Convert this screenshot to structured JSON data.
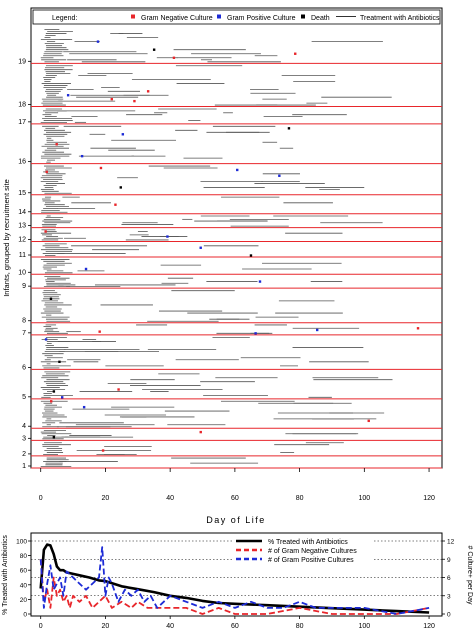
{
  "top_chart": {
    "ylabel": "Infants, grouped by recruitment site",
    "xlabel": "Day of Life",
    "x_ticks": [
      0,
      20,
      40,
      60,
      80,
      100,
      120
    ],
    "xlim": [
      -3,
      124
    ],
    "sites": [
      "1",
      "2",
      "3",
      "4",
      "5",
      "6",
      "7",
      "8",
      "9",
      "10",
      "11",
      "12",
      "13",
      "14",
      "15",
      "16",
      "17",
      "18",
      "19"
    ],
    "legend": {
      "title": "Legend:",
      "items": [
        {
          "label": "Gram Negative Culture",
          "color": "#e8262b",
          "marker": "square"
        },
        {
          "label": "Gram Positive Culture",
          "color": "#1d2bd6",
          "marker": "square"
        },
        {
          "label": "Death",
          "color": "#000000",
          "marker": "square"
        },
        {
          "label": "Treatment with Antibiotics",
          "color": "#555555",
          "marker": "line"
        }
      ]
    },
    "colors": {
      "separator": "#e8262b",
      "treatment": "#555555",
      "gram_negative": "#e8262b",
      "gram_positive": "#1d2bd6",
      "death": "#000000"
    }
  },
  "chart_data": [
    {
      "type": "scatter",
      "title": "",
      "xlabel": "Day of Life",
      "ylabel": "Infants, grouped by recruitment site",
      "xlim": [
        -3,
        124
      ],
      "categories": [
        "1",
        "2",
        "3",
        "4",
        "5",
        "6",
        "7",
        "8",
        "9",
        "10",
        "11",
        "12",
        "13",
        "14",
        "15",
        "16",
        "17",
        "18",
        "19"
      ],
      "site_relative_size": [
        1.4,
        1.8,
        1.4,
        3.4,
        3.4,
        4.0,
        1.4,
        4.0,
        1.6,
        2.0,
        1.8,
        1.6,
        1.6,
        2.2,
        3.6,
        4.6,
        2.0,
        5.0,
        4.2
      ],
      "series": [
        {
          "name": "Gram Negative Culture",
          "description": "per-infant positive Gram negative culture events, mostly days 0-40"
        },
        {
          "name": "Gram Positive Culture",
          "description": "per-infant positive Gram positive culture events, mostly days 0-40"
        },
        {
          "name": "Death",
          "description": "day of death for infants who died"
        },
        {
          "name": "Treatment with Antibiotics",
          "description": "horizontal segments spanning antibiotic treatment courses per infant"
        }
      ]
    },
    {
      "type": "line",
      "title": "",
      "xlabel": "",
      "ylabel": "% Treated with Antibiotics",
      "y2label": "# Culture+ per Day",
      "xlim": [
        -3,
        124
      ],
      "ylim": [
        0,
        100
      ],
      "y2lim": [
        0,
        12
      ],
      "y_ticks": [
        0,
        20,
        40,
        60,
        80,
        100
      ],
      "y2_ticks": [
        0,
        3,
        6,
        9,
        12
      ],
      "x_ticks": [
        0,
        20,
        40,
        60,
        80,
        100,
        120
      ],
      "legend_position": "top-right",
      "series": [
        {
          "name": "% Treated with Antibiotics",
          "axis": "left",
          "color": "#000000",
          "style": "solid",
          "x": [
            0,
            1,
            2,
            3,
            4,
            5,
            6,
            7,
            8,
            10,
            12,
            15,
            18,
            20,
            25,
            30,
            35,
            40,
            45,
            50,
            55,
            60,
            70,
            80,
            90,
            100,
            110,
            120
          ],
          "y": [
            35,
            88,
            95,
            94,
            82,
            65,
            60,
            60,
            57,
            55,
            53,
            50,
            46,
            45,
            38,
            34,
            30,
            25,
            22,
            18,
            15,
            14,
            12,
            10,
            8,
            6,
            4,
            2
          ]
        },
        {
          "name": "# of Gram Negative Cultures",
          "axis": "right",
          "color": "#e8262b",
          "style": "dashed",
          "x": [
            0,
            1,
            2,
            3,
            4,
            5,
            6,
            7,
            8,
            9,
            10,
            12,
            14,
            16,
            18,
            20,
            22,
            25,
            28,
            30,
            33,
            36,
            40,
            45,
            50,
            55,
            60,
            70,
            80,
            90,
            100,
            110,
            120
          ],
          "y": [
            9,
            2,
            4,
            1,
            6,
            3,
            4,
            2,
            3,
            1,
            3,
            2,
            3,
            1,
            2,
            3,
            1,
            2,
            1,
            2,
            1,
            1,
            1,
            1,
            0,
            1,
            0,
            0,
            1,
            0,
            0,
            0,
            1
          ]
        },
        {
          "name": "# of Gram Positive Cultures",
          "axis": "right",
          "color": "#1d2bd6",
          "style": "dashed",
          "x": [
            0,
            1,
            2,
            3,
            4,
            5,
            6,
            7,
            8,
            10,
            12,
            14,
            16,
            18,
            19,
            20,
            21,
            22,
            24,
            26,
            28,
            30,
            32,
            34,
            36,
            38,
            40,
            45,
            50,
            55,
            60,
            65,
            70,
            75,
            80,
            85,
            90,
            100,
            110,
            120
          ],
          "y": [
            9,
            1,
            5,
            8,
            4,
            5,
            6,
            3,
            7,
            6,
            5,
            4,
            5,
            6,
            11,
            3,
            6,
            5,
            2,
            4,
            3,
            4,
            2,
            3,
            1,
            2,
            3,
            2,
            1,
            2,
            1,
            2,
            1,
            1,
            2,
            1,
            1,
            1,
            0,
            1
          ]
        }
      ]
    }
  ]
}
